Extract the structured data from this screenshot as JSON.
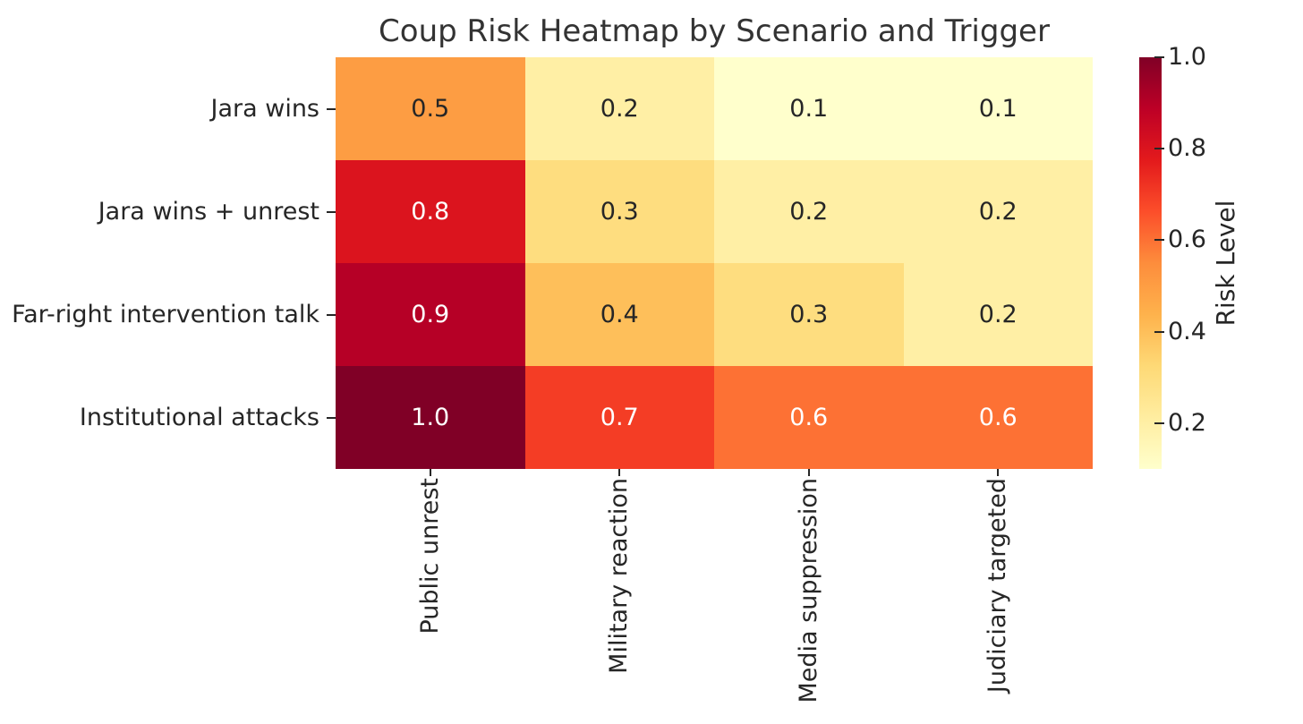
{
  "chart_data": {
    "type": "heatmap",
    "title": "Coup Risk Heatmap by Scenario and Trigger",
    "rows": [
      "Jara wins",
      "Jara wins + unrest",
      "Far-right intervention talk",
      "Institutional attacks"
    ],
    "columns": [
      "Public unrest",
      "Military reaction",
      "Media suppression",
      "Judiciary targeted"
    ],
    "values": [
      [
        0.5,
        0.2,
        0.1,
        0.1
      ],
      [
        0.8,
        0.3,
        0.2,
        0.2
      ],
      [
        0.9,
        0.4,
        0.3,
        0.2
      ],
      [
        1.0,
        0.7,
        0.6,
        0.6
      ]
    ],
    "cell_labels": [
      [
        "0.5",
        "0.2",
        "0.1",
        "0.1"
      ],
      [
        "0.8",
        "0.3",
        "0.2",
        "0.2"
      ],
      [
        "0.9",
        "0.4",
        "0.3",
        "0.2"
      ],
      [
        "1.0",
        "0.7",
        "0.6",
        "0.6"
      ]
    ],
    "value_colors": {
      "0.1": "#ffffcc",
      "0.2": "#ffefa5",
      "0.3": "#fedd7f",
      "0.4": "#febf5a",
      "0.5": "#fd9d43",
      "0.6": "#fd7134",
      "0.7": "#f43d25",
      "0.8": "#db141e",
      "0.9": "#b60026",
      "1.0": "#800026"
    },
    "annot": {
      "dark_text_color": "#262626",
      "light_text_color": "#ffffff",
      "light_text_min_value": 0.55
    },
    "colormap": "YlOrRd",
    "colormap_stops": [
      "#ffffcc",
      "#ffeda0",
      "#fed976",
      "#feb24c",
      "#fd8d3c",
      "#fc4e2a",
      "#e31a1c",
      "#bd0026",
      "#800026"
    ],
    "colorbar": {
      "label": "Risk Level",
      "vmin": 0.1,
      "vmax": 1.0,
      "ticks": [
        {
          "label": "1.0",
          "value": 1.0
        },
        {
          "label": "0.8",
          "value": 0.8
        },
        {
          "label": "0.6",
          "value": 0.6
        },
        {
          "label": "0.4",
          "value": 0.4
        },
        {
          "label": "0.2",
          "value": 0.2
        }
      ]
    },
    "layout": {
      "grid": false,
      "x_tick_label_rotation": 90,
      "colorbar_position": "right"
    }
  }
}
